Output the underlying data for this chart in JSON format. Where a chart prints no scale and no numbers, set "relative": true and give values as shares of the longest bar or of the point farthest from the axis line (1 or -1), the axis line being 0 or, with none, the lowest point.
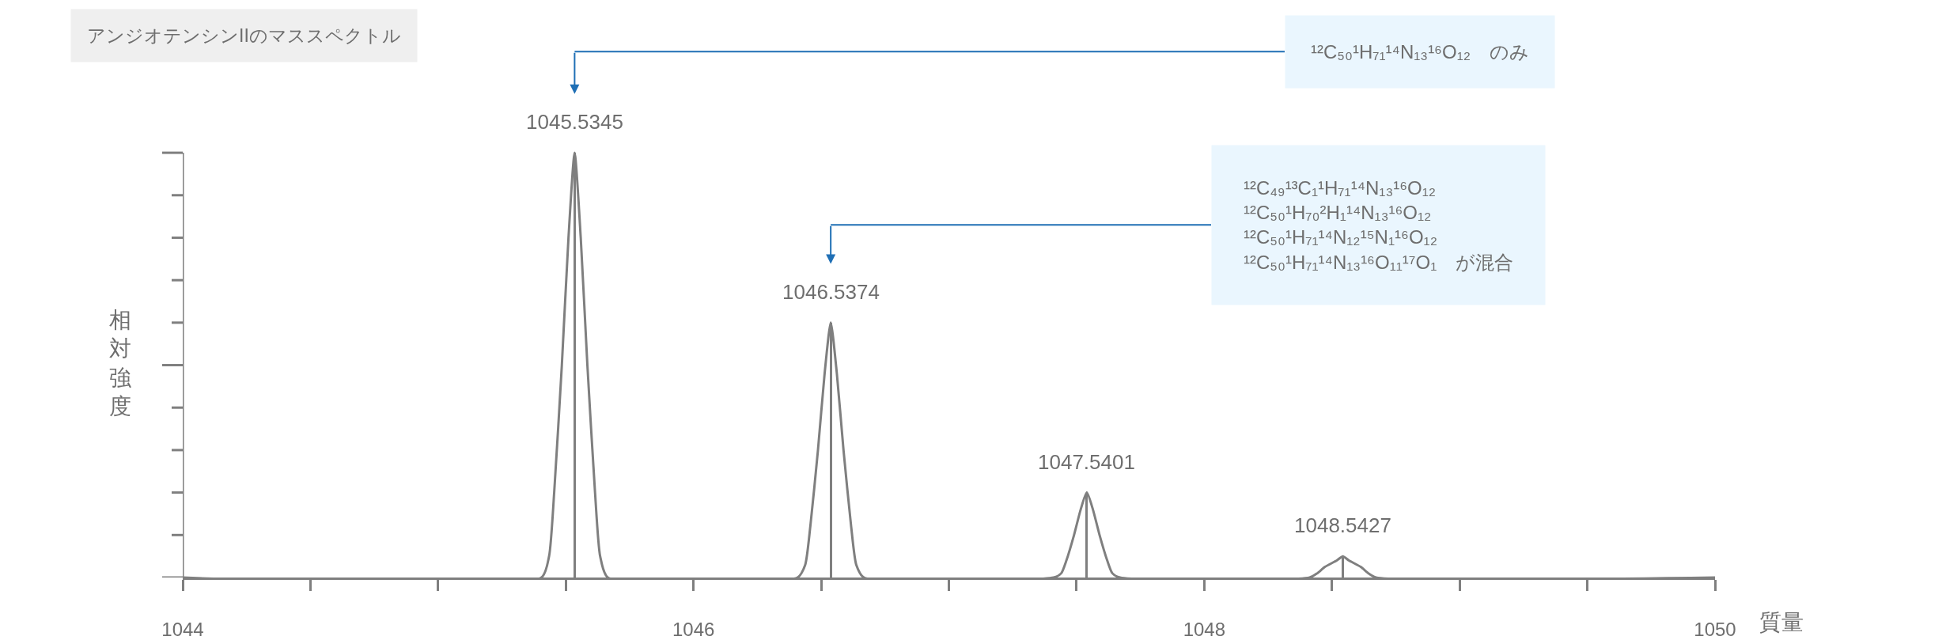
{
  "chart_data": {
    "type": "line",
    "title": "アンジオテンシンIIのマススペクトル",
    "xlabel": "質量",
    "ylabel": "相対強度",
    "relative": true,
    "xlim": [
      1044,
      1050
    ],
    "xticks": [
      1044,
      {
        "value": 1044.5,
        "label": null
      },
      {
        "value": 1045,
        "label": null
      },
      {
        "value": 1045.5,
        "label": null
      },
      1046,
      {
        "value": 1046.5,
        "label": null
      },
      {
        "value": 1047,
        "label": null
      },
      {
        "value": 1047.5,
        "label": null
      },
      1048,
      {
        "value": 1048.5,
        "label": null
      },
      {
        "value": 1049,
        "label": null
      },
      {
        "value": 1049.5,
        "label": null
      },
      1050
    ],
    "marker": "none",
    "line_style": "solid",
    "series": [
      {
        "color": "#7f7f7f",
        "x": [
          1044,
          1045.4045,
          1045.4345,
          1045.4545,
          1045.4845,
          1045.5105,
          1045.5345,
          1045.5585,
          1045.5845,
          1045.6145,
          1045.6345,
          1045.6645,
          1046.4074,
          1046.4374,
          1046.4574,
          1046.4874,
          1046.5134,
          1046.5374,
          1046.5614,
          1046.5874,
          1046.6174,
          1046.6374,
          1046.6674,
          1047.4101,
          1047.4401,
          1047.4601,
          1047.4901,
          1047.5161,
          1047.5401,
          1047.5641,
          1047.5901,
          1047.6201,
          1047.6401,
          1047.6701,
          1048.4127,
          1048.4427,
          1048.4727,
          1048.5187,
          1048.5427,
          1048.5667,
          1048.6127,
          1048.6427,
          1048.6727,
          1050
        ],
        "values": [
          0,
          0,
          0.05,
          0.2,
          0.5,
          0.8,
          1,
          0.8,
          0.5,
          0.2,
          0.05,
          0,
          0,
          0.03,
          0.12,
          0.3,
          0.48,
          0.6,
          0.48,
          0.3,
          0.12,
          0.03,
          0,
          0,
          0.01,
          0.04,
          0.1,
          0.16,
          0.2,
          0.16,
          0.1,
          0.04,
          0.01,
          0,
          0,
          0.01,
          0.025,
          0.04,
          0.05,
          0.04,
          0.025,
          0.01,
          0,
          0
        ]
      },
      {
        "type": "bar",
        "color": "#7f7f7f",
        "x": [
          1045.5345,
          1046.5374,
          1047.5401,
          1048.5427
        ],
        "values": [
          1,
          0.6,
          0.2,
          0.05
        ]
      }
    ],
    "annotations": [
      {
        "text": "1045.5345",
        "x": 1045.5345,
        "y": 1
      },
      {
        "text": "1046.5374",
        "x": 1046.5374,
        "y": 0.6
      },
      {
        "text": "1047.5401",
        "x": 1047.5401,
        "y": 0.2
      },
      {
        "text": "1048.5427",
        "x": 1048.5427,
        "y": 0.05
      },
      "¹²C₅₀¹H₇₁¹⁴N₁₃¹⁶O₁₂　のみ",
      "¹²C₄₉¹³C₁¹H₇₁¹⁴N₁₃¹⁶O₁₂\n¹²C₅₀¹H₇₀²H₁¹⁴N₁₃¹⁶O₁₂\n¹²C₅₀¹H₇₁¹⁴N₁₂¹⁵N₁¹⁶O₁₂\n¹²C₅₀¹H₇₁¹⁴N₁₃¹⁶O₁₁¹⁷O₁　が混合"
    ]
  }
}
